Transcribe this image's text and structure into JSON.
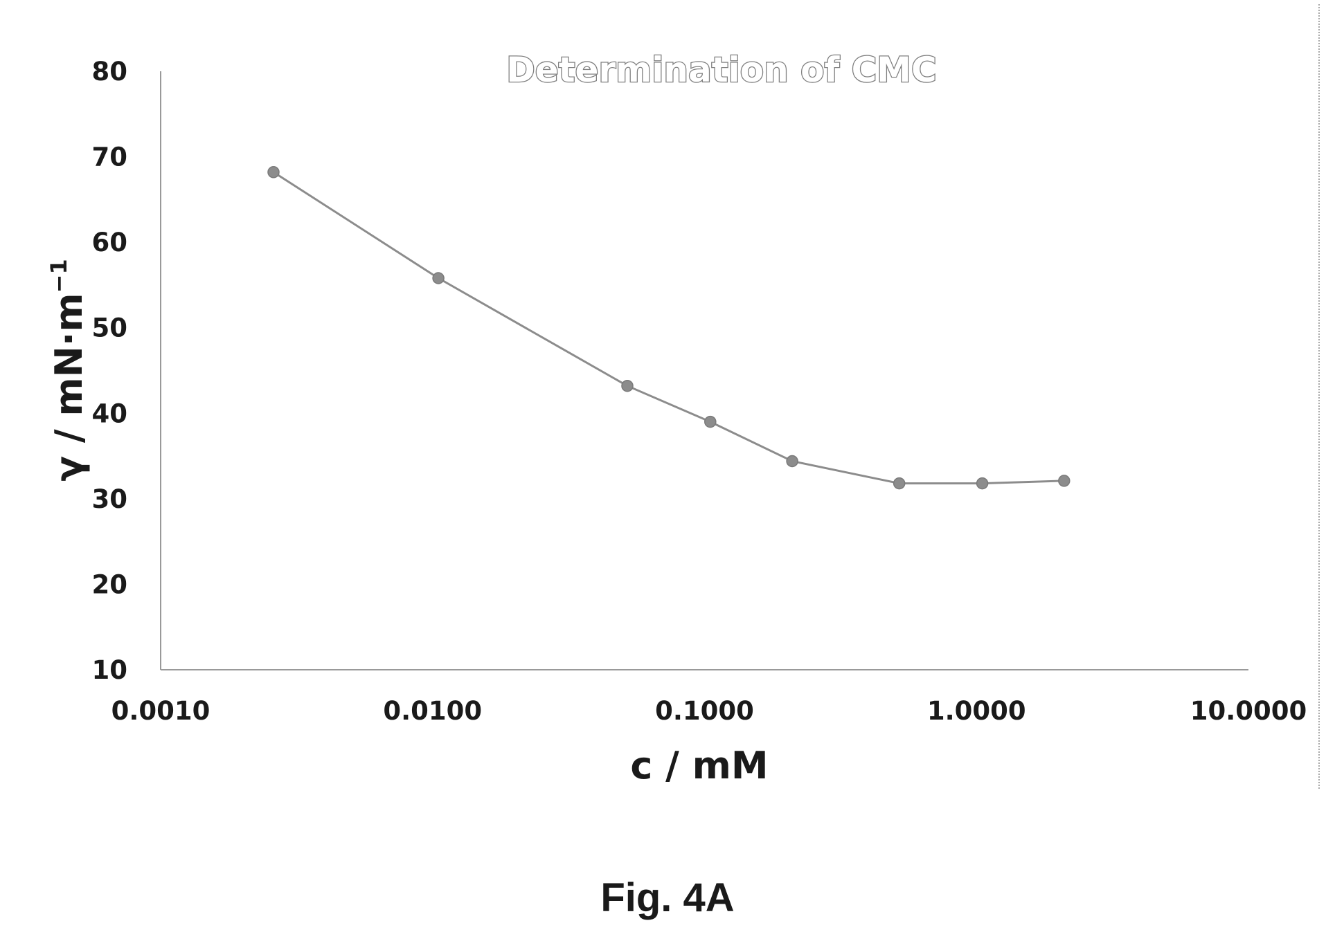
{
  "figure": {
    "caption": "Fig. 4A"
  },
  "chart_data": {
    "type": "line",
    "title": "Determination of CMC",
    "xlabel": "c / mM",
    "ylabel": "γ / mN·m",
    "ylabel_sup": "−1",
    "x_scale": "log",
    "xlim": [
      0.001,
      10
    ],
    "ylim": [
      10,
      80
    ],
    "x_tick_labels": [
      "0.0010",
      "0.0100",
      "0.1000",
      "1.0000",
      "10.0000"
    ],
    "x_tick_values": [
      0.001,
      0.01,
      0.1,
      1,
      10
    ],
    "y_tick_labels": [
      "80",
      "70",
      "60",
      "50",
      "40",
      "30",
      "20",
      "10"
    ],
    "y_tick_values": [
      80,
      70,
      60,
      50,
      40,
      30,
      20,
      10
    ],
    "grid": false,
    "legend": "none",
    "series": [
      {
        "color": "#8c8c8c",
        "marker": "circle",
        "x": [
          0.0026,
          0.0105,
          0.052,
          0.105,
          0.21,
          0.52,
          1.05,
          2.1
        ],
        "y": [
          68.2,
          55.8,
          43.2,
          39.0,
          34.4,
          31.8,
          31.8,
          32.1
        ]
      }
    ]
  }
}
